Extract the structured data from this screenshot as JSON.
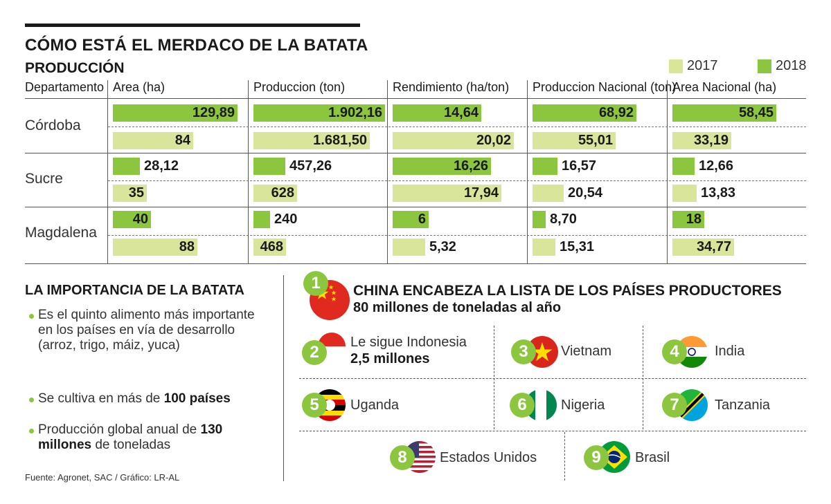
{
  "title": "CÓMO ESTÁ EL MERDACO DE LA BATATA",
  "subtitle": "PRODUCCIÓN",
  "legend": [
    {
      "label": "2017",
      "color": "#d9e59a"
    },
    {
      "label": "2018",
      "color": "#8cc63f"
    }
  ],
  "colors": {
    "y2017": "#d9e59a",
    "y2018": "#8cc63f",
    "accent": "#8cc63f"
  },
  "table": {
    "dept_header": "Departamento",
    "columns": [
      "Area (ha)",
      "Produccion (ton)",
      "Rendimiento (ha/ton)",
      "Produccion Nacional (ton)",
      "Area Nacional (ha)"
    ],
    "rows": [
      {
        "dept": "Córdoba",
        "v2018": [
          "129,89",
          "1.902,16",
          "14,64",
          "68,92",
          "58,45"
        ],
        "v2017": [
          "84",
          "1.681,50",
          "20,02",
          "55,01",
          "33,19"
        ]
      },
      {
        "dept": "Sucre",
        "v2018": [
          "28,12",
          "457,26",
          "16,26",
          "16,57",
          "12,66"
        ],
        "v2017": [
          "35",
          "628",
          "17,94",
          "20,54",
          "13,83"
        ]
      },
      {
        "dept": "Magdalena",
        "v2018": [
          "40",
          "240",
          "6",
          "8,70",
          "18"
        ],
        "v2017": [
          "88",
          "468",
          "5,32",
          "15,31",
          "34,77"
        ]
      }
    ]
  },
  "chart_data": {
    "type": "bar",
    "title": "CÓMO ESTÁ EL MERDACO DE LA BATATA",
    "subtitle": "PRODUCCIÓN",
    "categories": [
      "Córdoba",
      "Sucre",
      "Magdalena"
    ],
    "panels": [
      {
        "name": "Area (ha)",
        "series": [
          {
            "name": "2018",
            "values": [
              129.89,
              28.12,
              40
            ]
          },
          {
            "name": "2017",
            "values": [
              84,
              35,
              88
            ]
          }
        ]
      },
      {
        "name": "Produccion (ton)",
        "series": [
          {
            "name": "2018",
            "values": [
              1902.16,
              457.26,
              240
            ]
          },
          {
            "name": "2017",
            "values": [
              1681.5,
              628,
              468
            ]
          }
        ]
      },
      {
        "name": "Rendimiento (ha/ton)",
        "series": [
          {
            "name": "2018",
            "values": [
              14.64,
              16.26,
              6
            ]
          },
          {
            "name": "2017",
            "values": [
              20.02,
              17.94,
              5.32
            ]
          }
        ]
      },
      {
        "name": "Produccion Nacional (ton)",
        "series": [
          {
            "name": "2018",
            "values": [
              68.92,
              16.57,
              8.7
            ]
          },
          {
            "name": "2017",
            "values": [
              55.01,
              20.54,
              15.31
            ]
          }
        ]
      },
      {
        "name": "Area Nacional (ha)",
        "series": [
          {
            "name": "2018",
            "values": [
              58.45,
              12.66,
              18
            ]
          },
          {
            "name": "2017",
            "values": [
              33.19,
              13.83,
              34.77
            ]
          }
        ]
      }
    ],
    "legend_position": "top-right"
  },
  "importance": {
    "title": "LA IMPORTANCIA  DE LA BATATA",
    "bullets": [
      {
        "text": "Es el quinto alimento más importante en los países en vía de desarrollo (arroz, trigo, máiz, yuca)"
      },
      {
        "pre": "Se cultiva en más de ",
        "bold": "100 países",
        "post": ""
      },
      {
        "pre": "Producción global anual de ",
        "bold": "130 millones",
        "post": " de toneladas"
      }
    ],
    "source": "Fuente: Agronet, SAC / Gráfico: LR-AL"
  },
  "countries": {
    "headline": "CHINA ENCABEZA LA LISTA DE LOS PAÍSES PRODUCTORES",
    "subline": "80 millones de toneladas al año",
    "list": [
      {
        "rank": "1",
        "flag": "china-flag-icon"
      },
      {
        "rank": "2",
        "line1": "Le sigue Indonesia",
        "line2": "2,5 millones",
        "flag": "indonesia-flag-icon"
      },
      {
        "rank": "3",
        "name": "Vietnam",
        "flag": "vietnam-flag-icon"
      },
      {
        "rank": "4",
        "name": "India",
        "flag": "india-flag-icon"
      },
      {
        "rank": "5",
        "name": "Uganda",
        "flag": "uganda-flag-icon"
      },
      {
        "rank": "6",
        "name": "Nigeria",
        "flag": "nigeria-flag-icon"
      },
      {
        "rank": "7",
        "name": "Tanzania",
        "flag": "tanzania-flag-icon"
      },
      {
        "rank": "8",
        "name": "Estados Unidos",
        "flag": "usa-flag-icon"
      },
      {
        "rank": "9",
        "name": "Brasil",
        "flag": "brazil-flag-icon"
      }
    ]
  }
}
